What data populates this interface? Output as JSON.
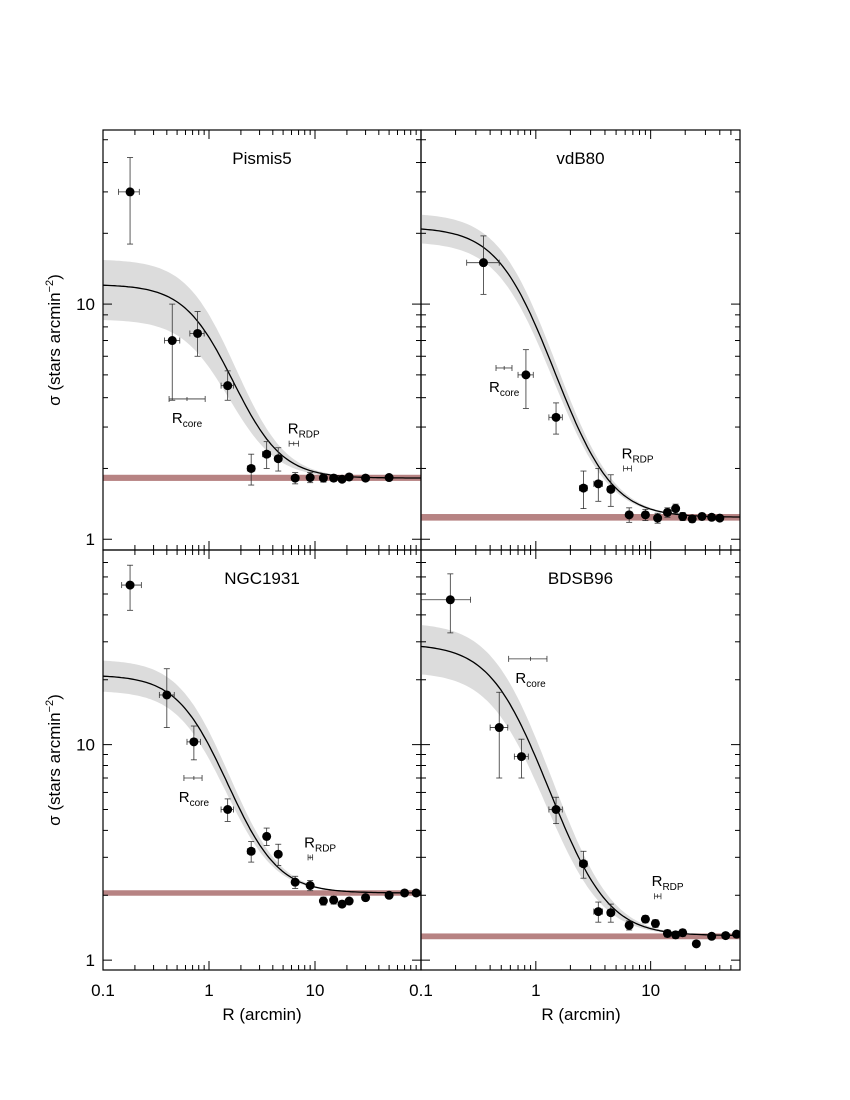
{
  "figure": {
    "y_axis_label_main": "σ (stars arcmin",
    "y_axis_label_sup": "−2",
    "y_axis_label_close": ")",
    "x_axis_label": "R (arcmin)"
  },
  "colors": {
    "data": "#000000",
    "model_line": "#000000",
    "uncertainty_band": "#dcdcdc",
    "background_band": "#b78383",
    "frame": "#000000"
  },
  "chart_data": [
    {
      "type": "scatter",
      "panel_title": "Pismis5",
      "xlabel": "",
      "ylabel": "σ (stars arcmin−2)",
      "xscale": "log",
      "yscale": "log",
      "xlim": [
        0.1,
        100
      ],
      "ylim": [
        0.9,
        55
      ],
      "xticks": [],
      "yticks": [
        "1",
        "10"
      ],
      "points": [
        {
          "x": 0.18,
          "y": 30.0,
          "ylo": 18.0,
          "yhi": 42.0,
          "xlo": 0.14,
          "xhi": 0.22
        },
        {
          "x": 0.45,
          "y": 7.0,
          "ylo": 3.9,
          "yhi": 10.0,
          "xlo": 0.38,
          "xhi": 0.53
        },
        {
          "x": 0.78,
          "y": 7.5,
          "ylo": 6.0,
          "yhi": 9.3,
          "xlo": 0.66,
          "xhi": 0.9
        },
        {
          "x": 1.5,
          "y": 4.5,
          "ylo": 3.9,
          "yhi": 5.2,
          "xlo": 1.3,
          "xhi": 1.7
        },
        {
          "x": 2.5,
          "y": 2.0,
          "ylo": 1.7,
          "yhi": 2.3,
          "xlo": 2.3,
          "xhi": 2.7
        },
        {
          "x": 3.5,
          "y": 2.3,
          "ylo": 2.0,
          "yhi": 2.6,
          "xlo": 3.2,
          "xhi": 3.8
        },
        {
          "x": 4.5,
          "y": 2.2,
          "ylo": 1.95,
          "yhi": 2.45,
          "xlo": 4.2,
          "xhi": 4.8
        },
        {
          "x": 6.5,
          "y": 1.82,
          "ylo": 1.72,
          "yhi": 1.92,
          "xlo": 6.2,
          "xhi": 6.8
        },
        {
          "x": 9.0,
          "y": 1.83,
          "ylo": 1.74,
          "yhi": 1.92,
          "xlo": 8.7,
          "xhi": 9.3
        },
        {
          "x": 12.0,
          "y": 1.82,
          "ylo": 1.75,
          "yhi": 1.89
        },
        {
          "x": 15.0,
          "y": 1.82,
          "ylo": 1.76,
          "yhi": 1.88
        },
        {
          "x": 18.0,
          "y": 1.8,
          "ylo": 1.75,
          "yhi": 1.85
        },
        {
          "x": 21.0,
          "y": 1.84,
          "ylo": 1.79,
          "yhi": 1.89
        },
        {
          "x": 30.0,
          "y": 1.82,
          "ylo": 1.78,
          "yhi": 1.86
        },
        {
          "x": 50.0,
          "y": 1.83,
          "ylo": 1.8,
          "yhi": 1.86
        }
      ],
      "model": {
        "sigma_bg": 1.82,
        "sigma_0": 10.3,
        "r_core": 1.05,
        "band_lo": 0.66,
        "band_hi": 1.33,
        "x_start": 0.1,
        "x_end": 100
      },
      "background_band": {
        "y": 1.82,
        "ylo": 1.77,
        "yhi": 1.88
      },
      "core_marker": {
        "label": "R",
        "subscript": "core",
        "x": 0.62,
        "y": 3.95,
        "xlo": 0.42,
        "xhi": 0.92
      },
      "rdp_marker": {
        "label": "R",
        "subscript": "RDP",
        "x": 6.3,
        "y": 2.55,
        "xlo": 5.7,
        "xhi": 7.0
      }
    },
    {
      "type": "scatter",
      "panel_title": "vdB80",
      "xlabel": "",
      "ylabel": "",
      "xscale": "log",
      "yscale": "log",
      "xlim": [
        0.1,
        60
      ],
      "ylim": [
        0.9,
        55
      ],
      "xticks": [],
      "yticks": [],
      "points": [
        {
          "x": 0.35,
          "y": 15.0,
          "ylo": 11.0,
          "yhi": 19.5,
          "xlo": 0.25,
          "xhi": 0.48
        },
        {
          "x": 0.82,
          "y": 5.0,
          "ylo": 3.6,
          "yhi": 6.4,
          "xlo": 0.7,
          "xhi": 0.95
        },
        {
          "x": 1.5,
          "y": 3.3,
          "ylo": 2.8,
          "yhi": 3.8,
          "xlo": 1.3,
          "xhi": 1.7
        },
        {
          "x": 2.6,
          "y": 1.65,
          "ylo": 1.35,
          "yhi": 1.95,
          "xlo": 2.4,
          "xhi": 2.8
        },
        {
          "x": 3.5,
          "y": 1.72,
          "ylo": 1.45,
          "yhi": 2.0,
          "xlo": 3.2,
          "xhi": 3.8
        },
        {
          "x": 4.5,
          "y": 1.63,
          "ylo": 1.38,
          "yhi": 1.88,
          "xlo": 4.2,
          "xhi": 4.8
        },
        {
          "x": 6.5,
          "y": 1.27,
          "ylo": 1.18,
          "yhi": 1.36,
          "xlo": 6.2,
          "xhi": 6.8
        },
        {
          "x": 9.0,
          "y": 1.27,
          "ylo": 1.2,
          "yhi": 1.34,
          "xlo": 8.7,
          "xhi": 9.3
        },
        {
          "x": 11.5,
          "y": 1.23,
          "ylo": 1.17,
          "yhi": 1.29
        },
        {
          "x": 14.0,
          "y": 1.3,
          "ylo": 1.24,
          "yhi": 1.36
        },
        {
          "x": 16.5,
          "y": 1.35,
          "ylo": 1.29,
          "yhi": 1.41
        },
        {
          "x": 19.0,
          "y": 1.25,
          "ylo": 1.2,
          "yhi": 1.3
        },
        {
          "x": 23.0,
          "y": 1.22,
          "ylo": 1.18,
          "yhi": 1.26
        },
        {
          "x": 28.0,
          "y": 1.25,
          "ylo": 1.21,
          "yhi": 1.29
        },
        {
          "x": 34.0,
          "y": 1.24,
          "ylo": 1.21,
          "yhi": 1.27
        },
        {
          "x": 40.0,
          "y": 1.23,
          "ylo": 1.2,
          "yhi": 1.26
        }
      ],
      "model": {
        "sigma_bg": 1.24,
        "sigma_0": 20.0,
        "r_core": 0.72,
        "band_lo": 0.86,
        "band_hi": 1.16,
        "x_start": 0.1,
        "x_end": 60
      },
      "background_band": {
        "y": 1.24,
        "ylo": 1.2,
        "yhi": 1.28
      },
      "core_marker": {
        "label": "R",
        "subscript": "core",
        "x": 0.53,
        "y": 5.35,
        "xlo": 0.45,
        "xhi": 0.62
      },
      "rdp_marker": {
        "label": "R",
        "subscript": "RDP",
        "x": 6.3,
        "y": 2.0,
        "xlo": 5.8,
        "xhi": 6.8
      }
    },
    {
      "type": "scatter",
      "panel_title": "NGC1931",
      "xlabel": "R (arcmin)",
      "ylabel": "σ (stars arcmin−2)",
      "xscale": "log",
      "yscale": "log",
      "xlim": [
        0.1,
        100
      ],
      "ylim": [
        0.9,
        80
      ],
      "xticks": [
        "0.1",
        "1",
        "10"
      ],
      "yticks": [
        "1",
        "10"
      ],
      "points": [
        {
          "x": 0.18,
          "y": 55.0,
          "ylo": 42.0,
          "yhi": 68.0,
          "xlo": 0.15,
          "xhi": 0.23
        },
        {
          "x": 0.4,
          "y": 17.0,
          "ylo": 12.0,
          "yhi": 22.5,
          "xlo": 0.34,
          "xhi": 0.47
        },
        {
          "x": 0.72,
          "y": 10.3,
          "ylo": 8.5,
          "yhi": 12.2,
          "xlo": 0.62,
          "xhi": 0.83
        },
        {
          "x": 1.5,
          "y": 5.0,
          "ylo": 4.4,
          "yhi": 5.6,
          "xlo": 1.3,
          "xhi": 1.7
        },
        {
          "x": 2.5,
          "y": 3.2,
          "ylo": 2.85,
          "yhi": 3.55,
          "xlo": 2.3,
          "xhi": 2.7
        },
        {
          "x": 3.5,
          "y": 3.75,
          "ylo": 3.4,
          "yhi": 4.1,
          "xlo": 3.3,
          "xhi": 3.7
        },
        {
          "x": 4.5,
          "y": 3.1,
          "ylo": 2.75,
          "yhi": 3.45,
          "xlo": 4.3,
          "xhi": 4.7
        },
        {
          "x": 6.5,
          "y": 2.3,
          "ylo": 2.15,
          "yhi": 2.45,
          "xlo": 6.1,
          "xhi": 6.9
        },
        {
          "x": 9.0,
          "y": 2.22,
          "ylo": 2.1,
          "yhi": 2.34,
          "xlo": 8.6,
          "xhi": 9.4
        },
        {
          "x": 12.0,
          "y": 1.88,
          "ylo": 1.8,
          "yhi": 1.96
        },
        {
          "x": 15.0,
          "y": 1.9,
          "ylo": 1.82,
          "yhi": 1.98
        },
        {
          "x": 18.0,
          "y": 1.82,
          "ylo": 1.76,
          "yhi": 1.88
        },
        {
          "x": 21.0,
          "y": 1.88,
          "ylo": 1.82,
          "yhi": 1.94
        },
        {
          "x": 30.0,
          "y": 1.95,
          "ylo": 1.9,
          "yhi": 2.0
        },
        {
          "x": 50.0,
          "y": 2.0,
          "ylo": 1.96,
          "yhi": 2.04
        },
        {
          "x": 70.0,
          "y": 2.05,
          "ylo": 2.02,
          "yhi": 2.08
        },
        {
          "x": 90.0,
          "y": 2.05,
          "ylo": 2.02,
          "yhi": 2.08
        }
      ],
      "model": {
        "sigma_bg": 2.05,
        "sigma_0": 19.0,
        "r_core": 0.84,
        "band_lo": 0.83,
        "band_hi": 1.2,
        "x_start": 0.1,
        "x_end": 100
      },
      "background_band": {
        "y": 2.05,
        "ylo": 1.99,
        "yhi": 2.11
      },
      "core_marker": {
        "label": "R",
        "subscript": "core",
        "x": 0.72,
        "y": 7.0,
        "xlo": 0.58,
        "xhi": 0.86
      },
      "rdp_marker": {
        "label": "R",
        "subscript": "RDP",
        "x": 9.0,
        "y": 3.0,
        "xlo": 8.6,
        "xhi": 9.5
      }
    },
    {
      "type": "scatter",
      "panel_title": "BDSB96",
      "xlabel": "R (arcmin)",
      "ylabel": "",
      "xscale": "log",
      "yscale": "log",
      "xlim": [
        0.1,
        60
      ],
      "ylim": [
        0.9,
        80
      ],
      "xticks": [
        "0.1",
        "1",
        "10"
      ],
      "yticks": [],
      "points": [
        {
          "x": 0.18,
          "y": 47.0,
          "ylo": 33.0,
          "yhi": 62.0,
          "xlo": 0.1,
          "xhi": 0.27
        },
        {
          "x": 0.48,
          "y": 12.0,
          "ylo": 7.0,
          "yhi": 17.5,
          "xlo": 0.4,
          "xhi": 0.57
        },
        {
          "x": 0.75,
          "y": 8.8,
          "ylo": 7.0,
          "yhi": 10.6,
          "xlo": 0.65,
          "xhi": 0.86
        },
        {
          "x": 1.5,
          "y": 5.0,
          "ylo": 4.3,
          "yhi": 5.7,
          "xlo": 1.3,
          "xhi": 1.7
        },
        {
          "x": 2.6,
          "y": 2.8,
          "ylo": 2.4,
          "yhi": 3.2,
          "xlo": 2.4,
          "xhi": 2.8
        },
        {
          "x": 3.5,
          "y": 1.68,
          "ylo": 1.5,
          "yhi": 1.86,
          "xlo": 3.2,
          "xhi": 3.8
        },
        {
          "x": 4.5,
          "y": 1.66,
          "ylo": 1.5,
          "yhi": 1.82,
          "xlo": 4.2,
          "xhi": 4.8
        },
        {
          "x": 6.5,
          "y": 1.45,
          "ylo": 1.38,
          "yhi": 1.52,
          "xlo": 6.2,
          "xhi": 6.8
        },
        {
          "x": 9.0,
          "y": 1.55,
          "ylo": 1.49,
          "yhi": 1.61,
          "xlo": 8.7,
          "xhi": 9.3
        },
        {
          "x": 11.0,
          "y": 1.48,
          "ylo": 1.42,
          "yhi": 1.54
        },
        {
          "x": 14.0,
          "y": 1.33,
          "ylo": 1.28,
          "yhi": 1.38
        },
        {
          "x": 16.5,
          "y": 1.31,
          "ylo": 1.26,
          "yhi": 1.36
        },
        {
          "x": 19.0,
          "y": 1.34,
          "ylo": 1.29,
          "yhi": 1.39
        },
        {
          "x": 25.0,
          "y": 1.19,
          "ylo": 1.16,
          "yhi": 1.22
        },
        {
          "x": 34.0,
          "y": 1.29,
          "ylo": 1.26,
          "yhi": 1.32
        },
        {
          "x": 45.0,
          "y": 1.3,
          "ylo": 1.27,
          "yhi": 1.33
        },
        {
          "x": 56.0,
          "y": 1.32,
          "ylo": 1.29,
          "yhi": 1.35
        }
      ],
      "model": {
        "sigma_bg": 1.3,
        "sigma_0": 28.0,
        "r_core": 0.6,
        "band_lo": 0.73,
        "band_hi": 1.27,
        "x_start": 0.1,
        "x_end": 60
      },
      "background_band": {
        "y": 1.29,
        "ylo": 1.25,
        "yhi": 1.33
      },
      "core_marker": {
        "label": "R",
        "subscript": "core",
        "x": 0.9,
        "y": 25.0,
        "xlo": 0.58,
        "xhi": 1.25
      },
      "rdp_marker": {
        "label": "R",
        "subscript": "RDP",
        "x": 11.5,
        "y": 1.98,
        "xlo": 10.8,
        "xhi": 12.3
      }
    }
  ]
}
